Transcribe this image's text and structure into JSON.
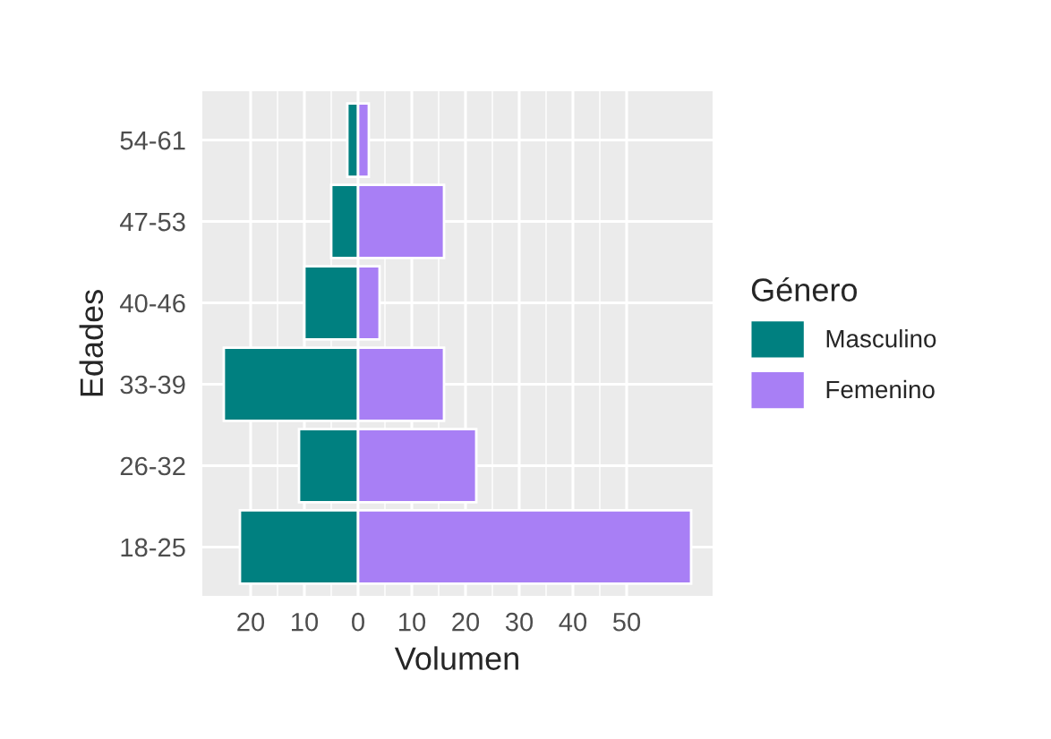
{
  "chart_data": {
    "type": "bar",
    "orientation": "horizontal",
    "xlabel": "Volumen",
    "ylabel": "Edades",
    "legend_title": "Género",
    "legend": "right",
    "grid": true,
    "stacked": true,
    "categories": [
      "54-61",
      "47-53",
      "40-46",
      "33-39",
      "26-32",
      "18-25"
    ],
    "series": [
      {
        "name": "Masculino",
        "color": "#008080",
        "values": [
          -2,
          -5,
          -10,
          -25,
          -11,
          -22
        ]
      },
      {
        "name": "Femenino",
        "color": "#a87ff5",
        "values": [
          2,
          16,
          4,
          16,
          22,
          62
        ]
      }
    ],
    "xlim": [
      -29,
      66
    ],
    "xticks": [
      {
        "value": -20,
        "label": "20"
      },
      {
        "value": -10,
        "label": "10"
      },
      0,
      10,
      20,
      30,
      40,
      50
    ]
  }
}
